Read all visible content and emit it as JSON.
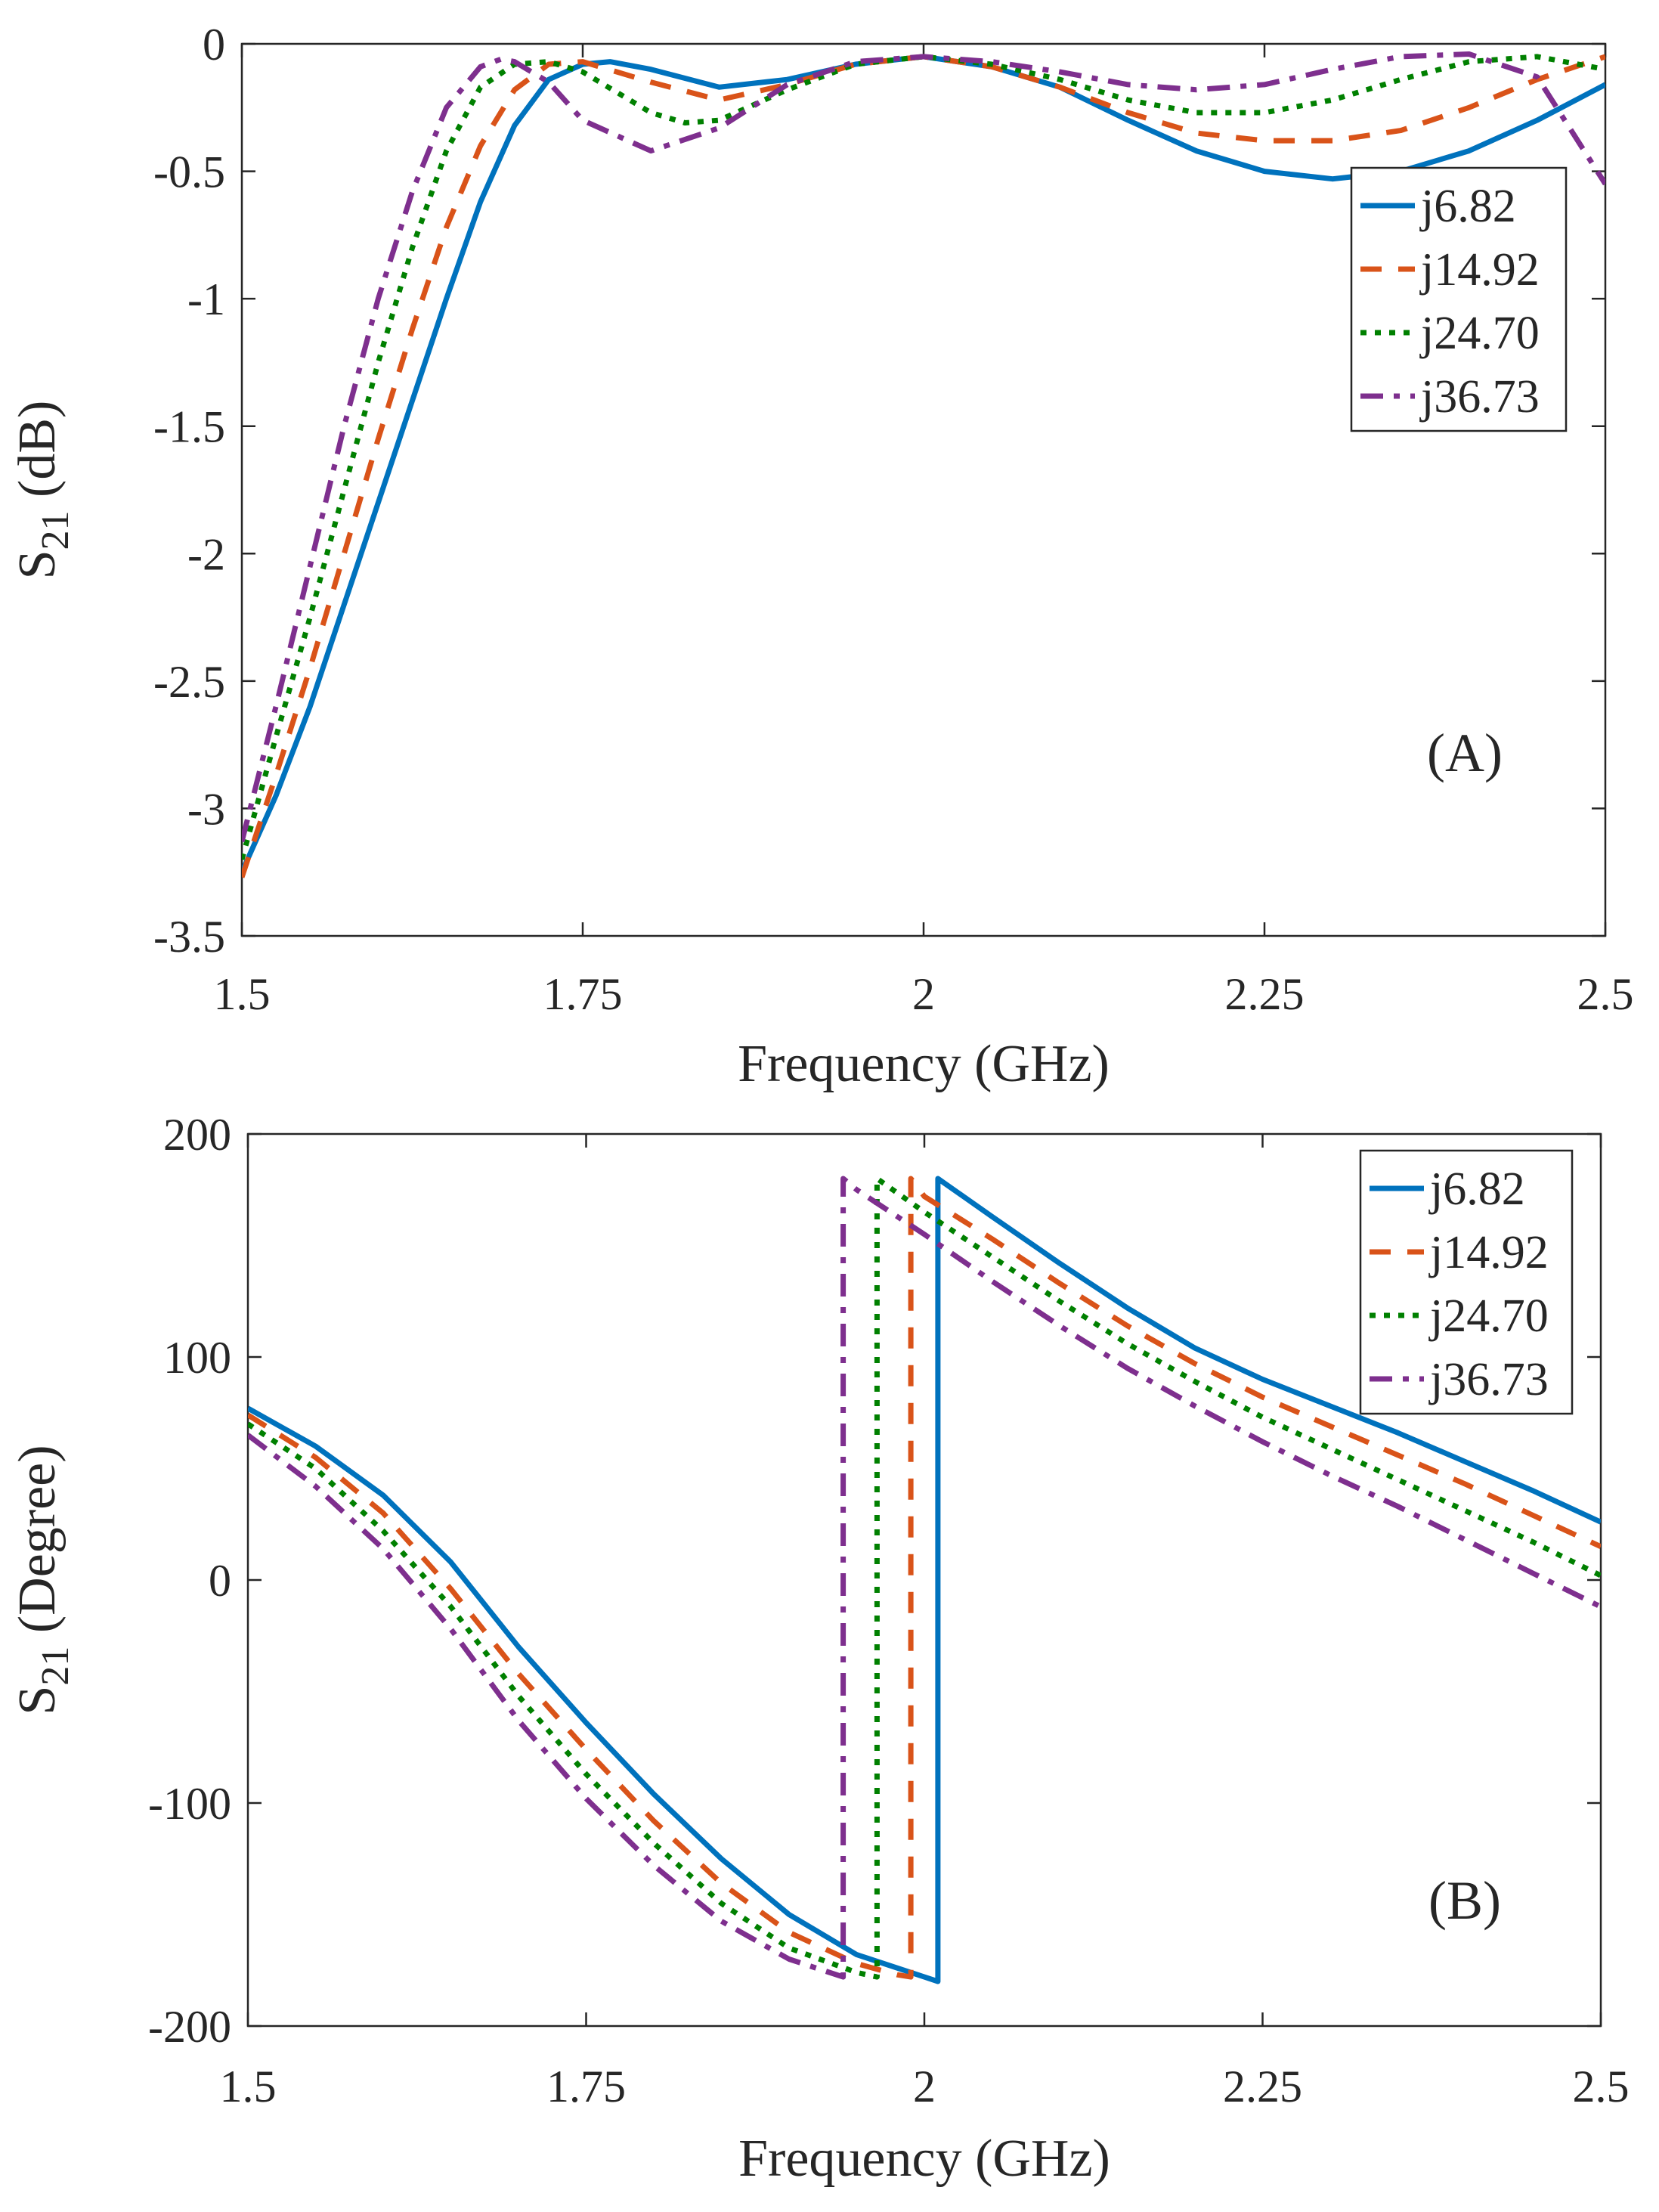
{
  "chart_data": [
    {
      "type": "line",
      "panel_label": "(A)",
      "xlabel": "Frequency (GHz)",
      "ylabel": {
        "base": "S",
        "sub": "21",
        "rest": " (dB)"
      },
      "xlim": [
        1.5,
        2.5
      ],
      "ylim": [
        -3.5,
        0
      ],
      "xticks": [
        1.5,
        1.75,
        2,
        2.25,
        2.5
      ],
      "xtick_labels": [
        "1.5",
        "1.75",
        "2",
        "2.25",
        "2.5"
      ],
      "yticks": [
        -3.5,
        -3,
        -2.5,
        -2,
        -1.5,
        -1,
        -0.5,
        0
      ],
      "ytick_labels": [
        "-3.5",
        "-3",
        "-2.5",
        "-2",
        "-1.5",
        "-1",
        "-0.5",
        "0"
      ],
      "grid": false,
      "legend_position": "upper-right",
      "series": [
        {
          "name": "j6.82",
          "color": "#0072BD",
          "style": "solid",
          "x": [
            1.5,
            1.525,
            1.55,
            1.575,
            1.6,
            1.625,
            1.65,
            1.675,
            1.7,
            1.725,
            1.75,
            1.77,
            1.8,
            1.85,
            1.9,
            1.95,
            2.0,
            2.05,
            2.1,
            2.15,
            2.2,
            2.25,
            2.3,
            2.35,
            2.4,
            2.45,
            2.5
          ],
          "y": [
            -3.25,
            -2.95,
            -2.6,
            -2.2,
            -1.8,
            -1.4,
            -1.0,
            -0.62,
            -0.32,
            -0.14,
            -0.08,
            -0.07,
            -0.1,
            -0.17,
            -0.14,
            -0.08,
            -0.05,
            -0.09,
            -0.17,
            -0.3,
            -0.42,
            -0.5,
            -0.53,
            -0.5,
            -0.42,
            -0.3,
            -0.16
          ]
        },
        {
          "name": "j14.92",
          "color": "#D95319",
          "style": "dashed",
          "x": [
            1.5,
            1.525,
            1.55,
            1.575,
            1.6,
            1.625,
            1.65,
            1.675,
            1.7,
            1.725,
            1.75,
            1.8,
            1.85,
            1.9,
            1.95,
            2.0,
            2.05,
            2.1,
            2.15,
            2.2,
            2.25,
            2.3,
            2.35,
            2.4,
            2.45,
            2.5
          ],
          "y": [
            -3.27,
            -2.87,
            -2.45,
            -2.0,
            -1.55,
            -1.12,
            -0.72,
            -0.4,
            -0.18,
            -0.08,
            -0.07,
            -0.15,
            -0.22,
            -0.16,
            -0.08,
            -0.05,
            -0.09,
            -0.17,
            -0.27,
            -0.35,
            -0.38,
            -0.38,
            -0.34,
            -0.25,
            -0.14,
            -0.05
          ]
        },
        {
          "name": "j24.70",
          "color": "#008000",
          "style": "dotted",
          "x": [
            1.5,
            1.525,
            1.55,
            1.575,
            1.6,
            1.625,
            1.65,
            1.675,
            1.7,
            1.725,
            1.75,
            1.8,
            1.825,
            1.85,
            1.9,
            1.95,
            2.0,
            2.05,
            2.1,
            2.15,
            2.2,
            2.25,
            2.3,
            2.35,
            2.4,
            2.45,
            2.5
          ],
          "y": [
            -3.2,
            -2.72,
            -2.25,
            -1.75,
            -1.25,
            -0.8,
            -0.42,
            -0.17,
            -0.08,
            -0.07,
            -0.11,
            -0.27,
            -0.31,
            -0.3,
            -0.18,
            -0.08,
            -0.05,
            -0.08,
            -0.14,
            -0.22,
            -0.27,
            -0.27,
            -0.22,
            -0.14,
            -0.07,
            -0.05,
            -0.1
          ]
        },
        {
          "name": "j36.73",
          "color": "#7E2F8E",
          "style": "dashdot",
          "x": [
            1.5,
            1.525,
            1.55,
            1.575,
            1.6,
            1.625,
            1.65,
            1.675,
            1.69,
            1.7,
            1.725,
            1.75,
            1.8,
            1.85,
            1.9,
            1.95,
            2.0,
            2.05,
            2.1,
            2.15,
            2.2,
            2.25,
            2.3,
            2.35,
            2.4,
            2.45,
            2.5
          ],
          "y": [
            -3.13,
            -2.6,
            -2.05,
            -1.5,
            -1.0,
            -0.58,
            -0.25,
            -0.09,
            -0.06,
            -0.07,
            -0.15,
            -0.3,
            -0.42,
            -0.33,
            -0.16,
            -0.07,
            -0.05,
            -0.07,
            -0.11,
            -0.16,
            -0.18,
            -0.16,
            -0.1,
            -0.05,
            -0.04,
            -0.13,
            -0.55
          ]
        }
      ]
    },
    {
      "type": "line",
      "panel_label": "(B)",
      "xlabel": "Frequency (GHz)",
      "ylabel": {
        "base": "S",
        "sub": "21",
        "rest": " (Degree)"
      },
      "xlim": [
        1.5,
        2.5
      ],
      "ylim": [
        -200,
        200
      ],
      "xticks": [
        1.5,
        1.75,
        2,
        2.25,
        2.5
      ],
      "xtick_labels": [
        "1.5",
        "1.75",
        "2",
        "2.25",
        "2.5"
      ],
      "yticks": [
        -200,
        -100,
        0,
        100,
        200
      ],
      "ytick_labels": [
        "-200",
        "-100",
        "0",
        "100",
        "200"
      ],
      "grid": false,
      "legend_position": "upper-right",
      "series": [
        {
          "name": "j6.82",
          "color": "#0072BD",
          "style": "solid",
          "x": [
            1.5,
            1.55,
            1.6,
            1.65,
            1.7,
            1.75,
            1.8,
            1.85,
            1.9,
            1.95,
            2.0,
            2.01,
            2.01,
            2.05,
            2.1,
            2.15,
            2.2,
            2.25,
            2.3,
            2.35,
            2.4,
            2.45,
            2.5
          ],
          "y": [
            77,
            60,
            38,
            8,
            -30,
            -64,
            -96,
            -125,
            -150,
            -168,
            -178,
            -180,
            180,
            163,
            142,
            122,
            104,
            90,
            78,
            66,
            53,
            40,
            26
          ]
        },
        {
          "name": "j14.92",
          "color": "#D95319",
          "style": "dashed",
          "x": [
            1.5,
            1.55,
            1.6,
            1.65,
            1.7,
            1.75,
            1.8,
            1.85,
            1.9,
            1.95,
            1.98,
            1.99,
            1.99,
            2.0,
            2.05,
            2.1,
            2.15,
            2.2,
            2.25,
            2.3,
            2.35,
            2.4,
            2.45,
            2.5
          ],
          "y": [
            74,
            55,
            30,
            -4,
            -42,
            -76,
            -108,
            -136,
            -158,
            -172,
            -177,
            -178,
            180,
            172,
            153,
            133,
            114,
            97,
            82,
            69,
            56,
            43,
            29,
            15
          ]
        },
        {
          "name": "j24.70",
          "color": "#008000",
          "style": "dotted",
          "x": [
            1.5,
            1.55,
            1.6,
            1.65,
            1.7,
            1.75,
            1.8,
            1.85,
            1.9,
            1.95,
            1.965,
            1.965,
            2.0,
            2.05,
            2.1,
            2.15,
            2.2,
            2.25,
            2.3,
            2.35,
            2.4,
            2.45,
            2.5
          ],
          "y": [
            70,
            50,
            22,
            -12,
            -52,
            -87,
            -118,
            -145,
            -165,
            -176,
            -178,
            180,
            165,
            145,
            125,
            106,
            89,
            73,
            59,
            45,
            31,
            17,
            2
          ]
        },
        {
          "name": "j36.73",
          "color": "#7E2F8E",
          "style": "dashdot",
          "x": [
            1.5,
            1.55,
            1.6,
            1.65,
            1.7,
            1.75,
            1.8,
            1.85,
            1.9,
            1.94,
            1.94,
            1.95,
            2.0,
            2.05,
            2.1,
            2.15,
            2.2,
            2.25,
            2.3,
            2.35,
            2.4,
            2.45,
            2.5
          ],
          "y": [
            65,
            42,
            14,
            -22,
            -63,
            -98,
            -128,
            -153,
            -170,
            -178,
            180,
            175,
            155,
            134,
            114,
            95,
            78,
            62,
            47,
            33,
            18,
            3,
            -12
          ]
        }
      ]
    }
  ]
}
